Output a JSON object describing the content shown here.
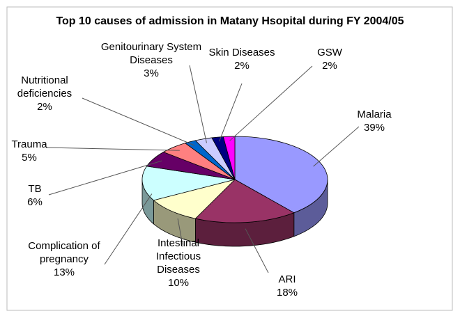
{
  "chart_data": {
    "type": "pie3d",
    "title": "Top 10 causes of admission in Matany Hsopital during FY 2004/05",
    "categories": [
      "Malaria",
      "ARI",
      "Intestinal Infectious Diseases",
      "Complication of pregnancy",
      "TB",
      "Trauma",
      "Nutritional deficiencies",
      "Genitourinary System Diseases",
      "Skin Diseases",
      "GSW"
    ],
    "values": [
      39,
      18,
      10,
      13,
      6,
      5,
      2,
      3,
      2,
      2
    ],
    "value_labels": [
      "39%",
      "18%",
      "10%",
      "13%",
      "6%",
      "5%",
      "2%",
      "3%",
      "2%",
      "2%"
    ],
    "colors": [
      "#9999ff",
      "#993366",
      "#ffffcc",
      "#ccffff",
      "#660066",
      "#ff8080",
      "#0066cc",
      "#ccccff",
      "#000080",
      "#ff00ff"
    ]
  }
}
